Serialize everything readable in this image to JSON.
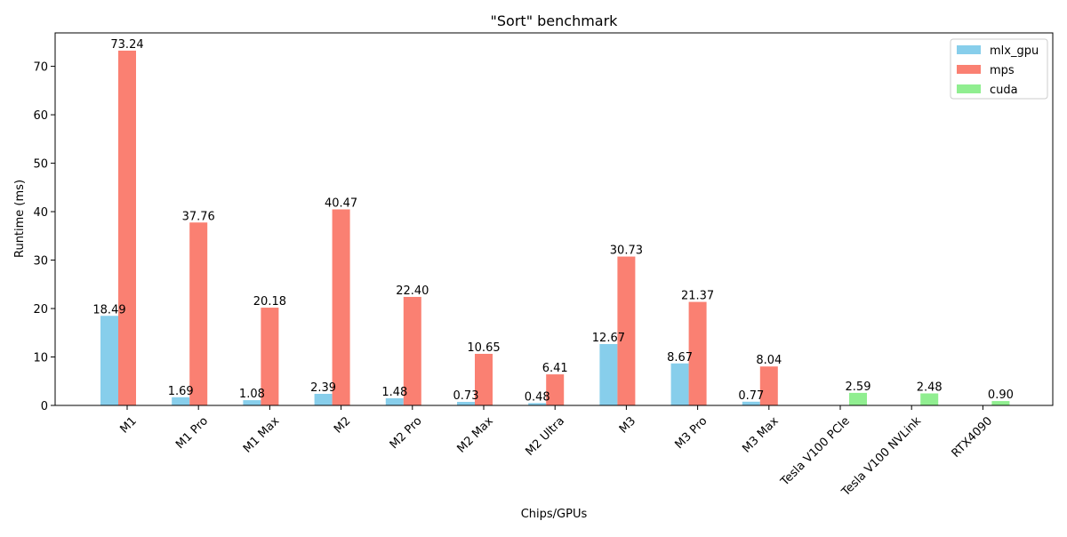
{
  "chart_data": {
    "type": "bar",
    "title": "\"Sort\" benchmark",
    "xlabel": "Chips/GPUs",
    "ylabel": "Runtime (ms)",
    "ylim": [
      0,
      76.9
    ],
    "yticks": [
      0,
      10,
      20,
      30,
      40,
      50,
      60,
      70
    ],
    "grid": false,
    "legend_position": "top-right",
    "categories": [
      "M1",
      "M1 Pro",
      "M1 Max",
      "M2",
      "M2 Pro",
      "M2 Max",
      "M2 Ultra",
      "M3",
      "M3 Pro",
      "M3 Max",
      "Tesla V100 PCIe",
      "Tesla V100 NVLink",
      "RTX4090"
    ],
    "series": [
      {
        "name": "mlx_gpu",
        "color": "#87CEEB",
        "values": [
          18.49,
          1.69,
          1.08,
          2.39,
          1.48,
          0.73,
          0.48,
          12.67,
          8.67,
          0.77,
          null,
          null,
          null
        ],
        "labels": [
          "18.49",
          "1.69",
          "1.08",
          "2.39",
          "1.48",
          "0.73",
          "0.48",
          "12.67",
          "8.67",
          "0.77",
          null,
          null,
          null
        ]
      },
      {
        "name": "mps",
        "color": "#FA8072",
        "values": [
          73.24,
          37.76,
          20.18,
          40.47,
          22.4,
          10.65,
          6.41,
          30.73,
          21.37,
          8.04,
          null,
          null,
          null
        ],
        "labels": [
          "73.24",
          "37.76",
          "20.18",
          "40.47",
          "22.40",
          "10.65",
          "6.41",
          "30.73",
          "21.37",
          "8.04",
          null,
          null,
          null
        ]
      },
      {
        "name": "cuda",
        "color": "#90EE90",
        "values": [
          null,
          null,
          null,
          null,
          null,
          null,
          null,
          null,
          null,
          null,
          2.59,
          2.48,
          0.9
        ],
        "labels": [
          null,
          null,
          null,
          null,
          null,
          null,
          null,
          null,
          null,
          null,
          "2.59",
          "2.48",
          "0.90"
        ]
      }
    ]
  }
}
